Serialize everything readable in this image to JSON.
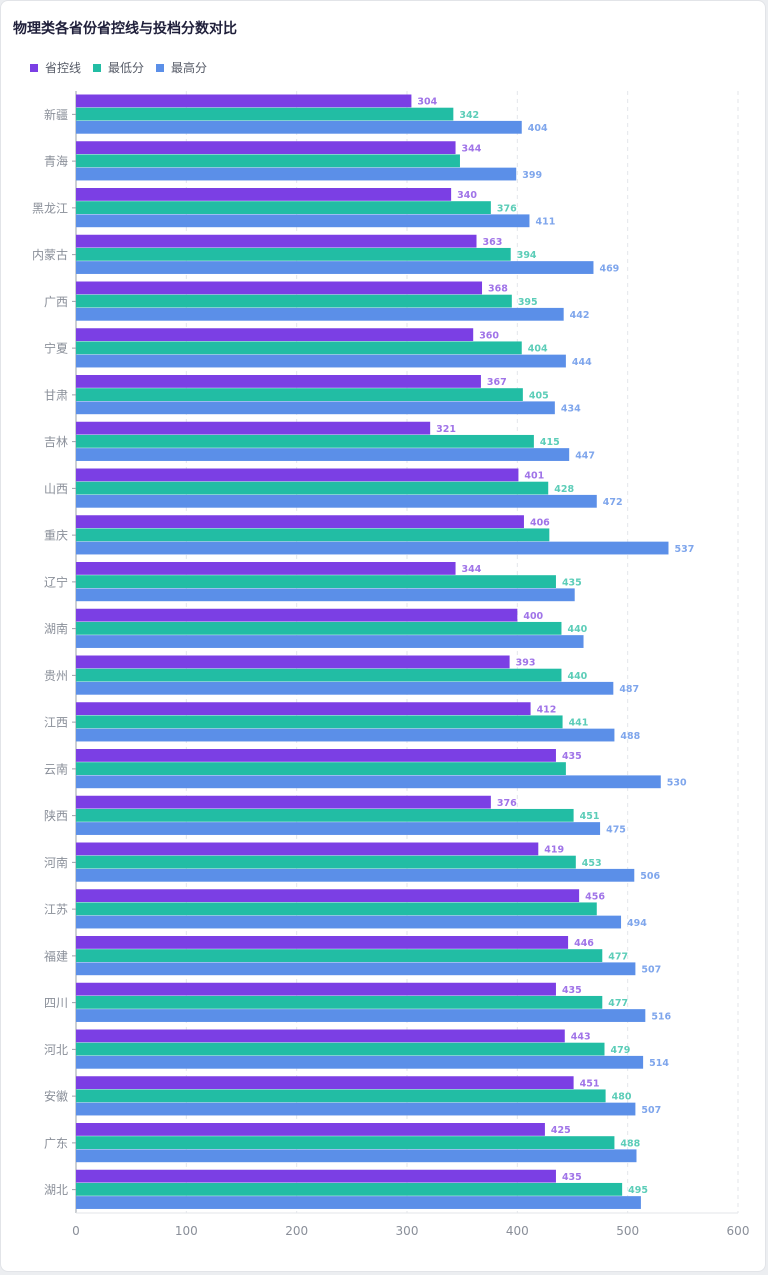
{
  "chart_data": {
    "type": "bar",
    "orientation": "horizontal",
    "title": "物理类各省份省控线与投档分数对比",
    "categories": [
      "新疆",
      "青海",
      "黑龙江",
      "内蒙古",
      "广西",
      "宁夏",
      "甘肃",
      "吉林",
      "山西",
      "重庆",
      "辽宁",
      "湖南",
      "贵州",
      "江西",
      "云南",
      "陕西",
      "河南",
      "江苏",
      "福建",
      "四川",
      "河北",
      "安徽",
      "广东",
      "湖北"
    ],
    "series": [
      {
        "name": "省控线",
        "color": "#7b3fe4",
        "label_color": "#a074e8",
        "values": [
          304,
          344,
          340,
          363,
          368,
          360,
          367,
          321,
          401,
          406,
          344,
          400,
          393,
          412,
          435,
          376,
          419,
          456,
          446,
          435,
          443,
          451,
          425,
          435
        ],
        "labels_shown": [
          true,
          true,
          true,
          true,
          true,
          true,
          true,
          true,
          true,
          true,
          true,
          true,
          true,
          true,
          true,
          true,
          true,
          true,
          true,
          true,
          true,
          true,
          true,
          true
        ]
      },
      {
        "name": "最低分",
        "color": "#22bda4",
        "label_color": "#5ccdb8",
        "values": [
          342,
          348,
          376,
          394,
          395,
          404,
          405,
          415,
          428,
          429,
          435,
          440,
          440,
          441,
          444,
          451,
          453,
          472,
          477,
          477,
          479,
          480,
          488,
          495
        ],
        "labels_shown": [
          true,
          false,
          true,
          true,
          true,
          true,
          true,
          true,
          true,
          false,
          true,
          true,
          true,
          true,
          false,
          true,
          true,
          false,
          true,
          true,
          true,
          true,
          true,
          true
        ]
      },
      {
        "name": "最高分",
        "color": "#5b8fe8",
        "label_color": "#7fa6ec",
        "values": [
          404,
          399,
          411,
          469,
          442,
          444,
          434,
          447,
          472,
          537,
          452,
          460,
          487,
          488,
          530,
          475,
          506,
          494,
          507,
          516,
          514,
          507,
          508,
          512
        ],
        "labels_shown": [
          true,
          true,
          true,
          true,
          true,
          true,
          true,
          true,
          true,
          true,
          false,
          false,
          true,
          true,
          true,
          true,
          true,
          true,
          true,
          true,
          true,
          true,
          false,
          false
        ]
      }
    ],
    "xlim": [
      0,
      600
    ],
    "xticks": [
      0,
      100,
      200,
      300,
      400,
      500,
      600
    ],
    "grid": true,
    "legend_position": "top-left"
  }
}
